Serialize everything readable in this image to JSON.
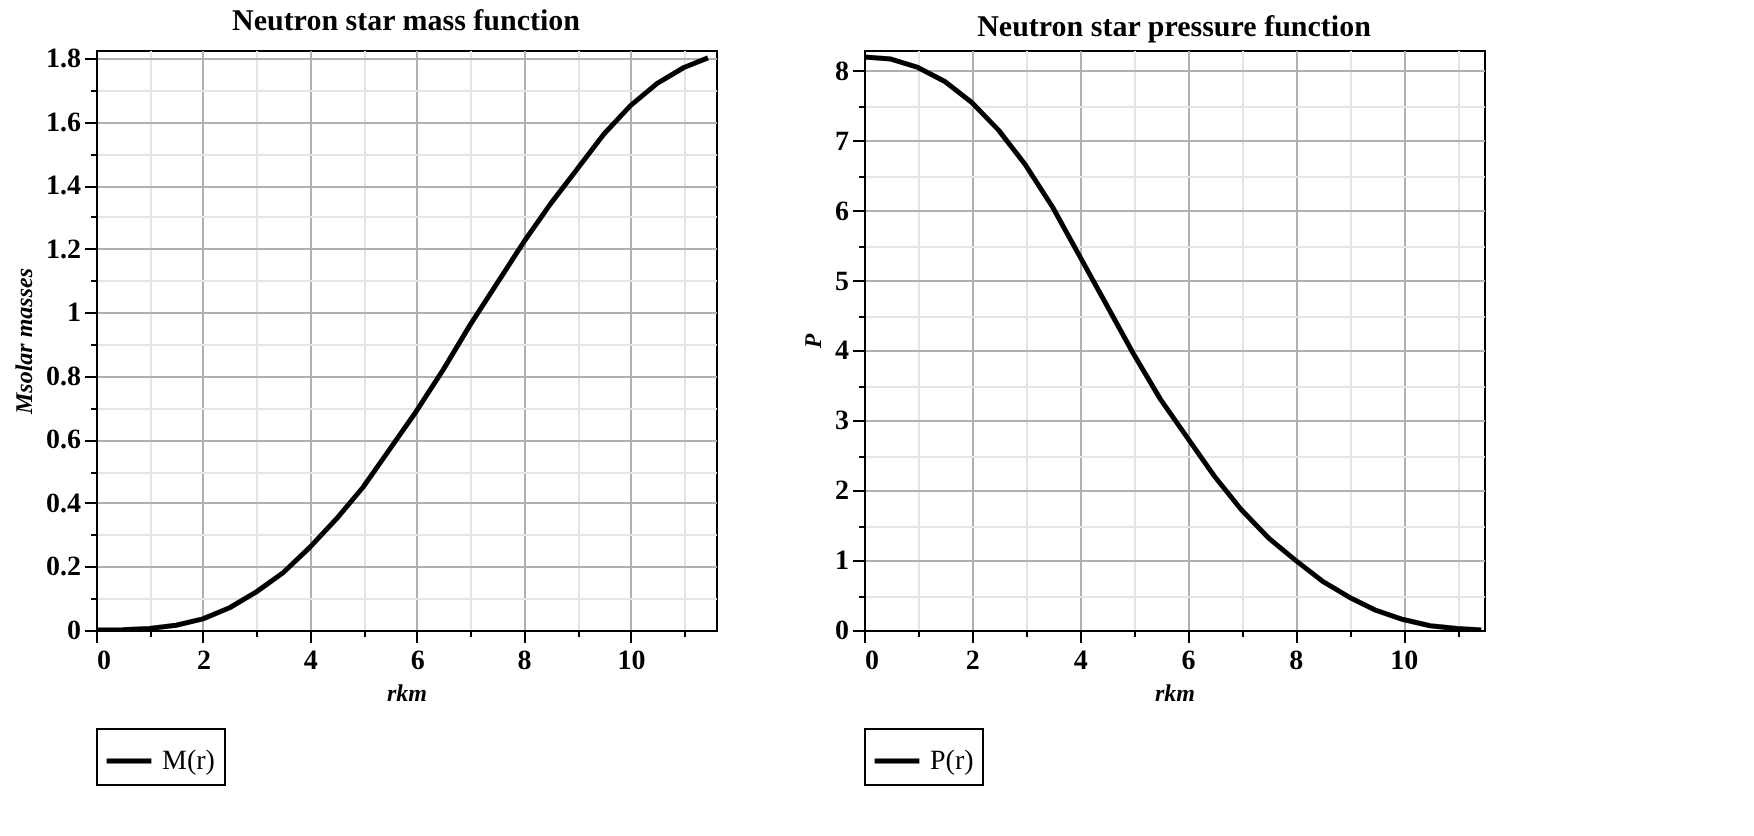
{
  "chart_data": [
    {
      "type": "line",
      "title": "Neutron star mass function",
      "xlabel": "rkm",
      "ylabel": "Msolar masses",
      "x": [
        0,
        0.5,
        1,
        1.5,
        2,
        2.5,
        3,
        3.5,
        4,
        4.5,
        5,
        5.5,
        6,
        6.5,
        7,
        7.5,
        8,
        8.5,
        9,
        9.5,
        10,
        10.5,
        11,
        11.45
      ],
      "series": [
        {
          "name": "M(r)",
          "color": "#000000",
          "values": [
            0,
            0.001,
            0.005,
            0.015,
            0.035,
            0.07,
            0.12,
            0.18,
            0.26,
            0.35,
            0.45,
            0.57,
            0.69,
            0.82,
            0.96,
            1.09,
            1.22,
            1.34,
            1.45,
            1.56,
            1.65,
            1.72,
            1.77,
            1.8
          ]
        }
      ],
      "xlim": [
        0,
        11.6
      ],
      "ylim": [
        0,
        1.825
      ],
      "xticks": [
        0,
        {
          "value": 1,
          "label": null
        },
        2,
        {
          "value": 3,
          "label": null
        },
        4,
        {
          "value": 5,
          "label": null
        },
        6,
        {
          "value": 7,
          "label": null
        },
        8,
        {
          "value": 9,
          "label": null
        },
        10,
        {
          "value": 11,
          "label": null
        }
      ],
      "yticks": [
        0,
        {
          "value": 0.1,
          "label": null
        },
        0.2,
        {
          "value": 0.3,
          "label": null
        },
        0.4,
        {
          "value": 0.5,
          "label": null
        },
        0.6,
        {
          "value": 0.7,
          "label": null
        },
        0.8,
        {
          "value": 0.9,
          "label": null
        },
        1,
        {
          "value": 1.1,
          "label": null
        },
        1.2,
        {
          "value": 1.3,
          "label": null
        },
        1.4,
        {
          "value": 1.5,
          "label": null
        },
        1.6,
        {
          "value": 1.7,
          "label": null
        },
        1.8
      ],
      "grid": true,
      "legend": "bottom",
      "line_style": "solid",
      "marker": "none"
    },
    {
      "type": "line",
      "title": "Neutron star pressure function",
      "xlabel": "rkm",
      "ylabel": "P",
      "x": [
        0,
        0.5,
        1,
        1.5,
        2,
        2.5,
        3,
        3.5,
        4,
        4.5,
        5,
        5.5,
        6,
        6.5,
        7,
        7.5,
        8,
        8.5,
        9,
        9.5,
        10,
        10.5,
        11,
        11.45
      ],
      "series": [
        {
          "name": "P(r)",
          "color": "#000000",
          "values": [
            8.2,
            8.17,
            8.05,
            7.85,
            7.55,
            7.15,
            6.65,
            6.05,
            5.35,
            4.65,
            3.95,
            3.3,
            2.75,
            2.2,
            1.72,
            1.32,
            1.0,
            0.7,
            0.47,
            0.28,
            0.15,
            0.06,
            0.02,
            0.0
          ]
        }
      ],
      "xlim": [
        0,
        11.5
      ],
      "ylim": [
        0,
        8.3
      ],
      "xticks": [
        0,
        {
          "value": 1,
          "label": null
        },
        2,
        {
          "value": 3,
          "label": null
        },
        4,
        {
          "value": 5,
          "label": null
        },
        6,
        {
          "value": 7,
          "label": null
        },
        8,
        {
          "value": 9,
          "label": null
        },
        10,
        {
          "value": 11,
          "label": null
        }
      ],
      "yticks": [
        0,
        {
          "value": 0.5,
          "label": null
        },
        1,
        {
          "value": 1.5,
          "label": null
        },
        2,
        {
          "value": 2.5,
          "label": null
        },
        3,
        {
          "value": 3.5,
          "label": null
        },
        4,
        {
          "value": 4.5,
          "label": null
        },
        5,
        {
          "value": 5.5,
          "label": null
        },
        6,
        {
          "value": 6.5,
          "label": null
        },
        7,
        {
          "value": 7.5,
          "label": null
        },
        8
      ],
      "grid": true,
      "legend": "bottom",
      "line_style": "solid",
      "marker": "none"
    }
  ]
}
